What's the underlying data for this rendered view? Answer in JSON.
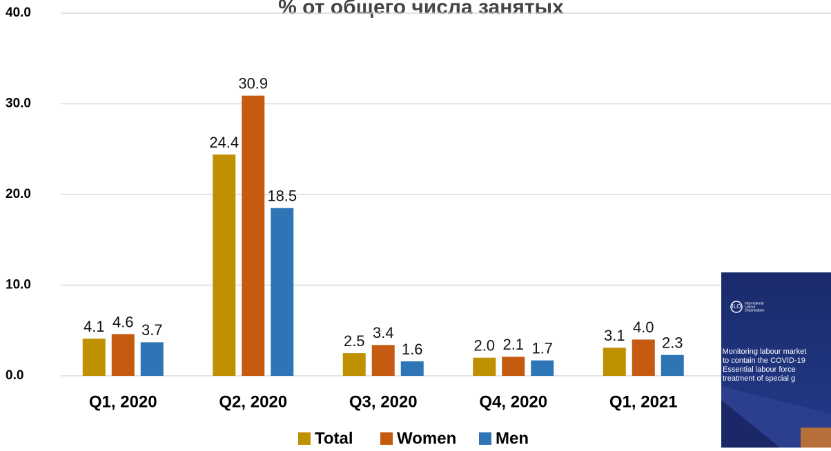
{
  "chart_data": {
    "type": "bar",
    "title": "% от общего числа занятых",
    "categories": [
      "Q1, 2020",
      "Q2, 2020",
      "Q3, 2020",
      "Q4, 2020",
      "Q1, 2021"
    ],
    "series": [
      {
        "name": "Total",
        "color": "#bf9000",
        "values": [
          4.1,
          24.4,
          2.5,
          2.0,
          3.1
        ],
        "value_labels": [
          "4.1",
          "24.4",
          "2.5",
          "2.0",
          "3.1"
        ]
      },
      {
        "name": "Women",
        "color": "#c55a11",
        "values": [
          4.6,
          30.9,
          3.4,
          2.1,
          4.0
        ],
        "value_labels": [
          "4.6",
          "30.9",
          "3.4",
          "2.1",
          "4.0"
        ]
      },
      {
        "name": "Men",
        "color": "#2e75b6",
        "values": [
          3.7,
          18.5,
          1.6,
          1.7,
          2.3
        ],
        "value_labels": [
          "3.7",
          "18.5",
          "1.6",
          "1.7",
          "2.3"
        ]
      }
    ],
    "ylim": [
      0,
      40
    ],
    "yticks": [
      {
        "value": 0,
        "label": "0.0"
      },
      {
        "value": 10,
        "label": "10.0"
      },
      {
        "value": 20,
        "label": "20.0"
      },
      {
        "value": 30,
        "label": "30.0"
      },
      {
        "value": 40,
        "label": "40.0"
      }
    ],
    "grid": true,
    "legend": "bottom"
  },
  "thumbnail": {
    "logo_text": [
      "International",
      "Labour",
      "Organization"
    ],
    "lines": [
      "▸ Monitoring labour market",
      "to contain the COVID-19",
      "Essential labour force",
      "treatment of special g"
    ]
  }
}
